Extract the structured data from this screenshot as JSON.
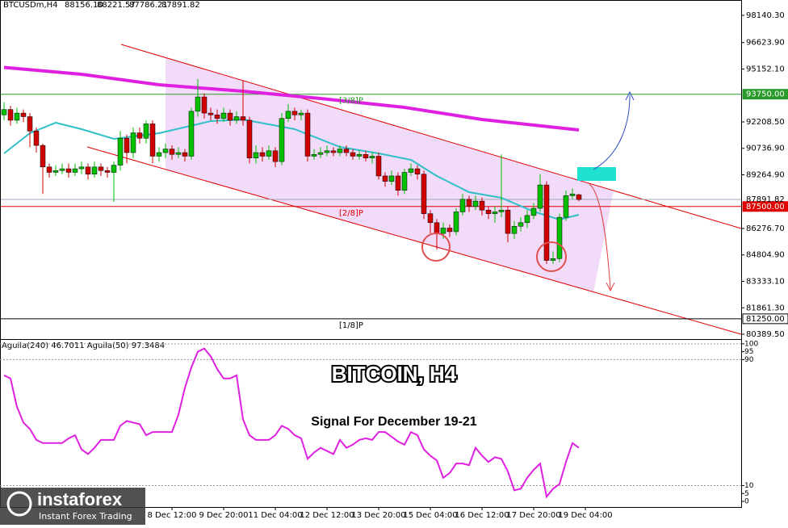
{
  "chart_data": {
    "type": "candlestick",
    "header": {
      "symbol": "BTCUSDm,H4",
      "ohlc_labels": [
        "88156.10",
        "88221.57",
        "87786.21",
        "87891.82"
      ]
    },
    "title": "BITCOIN, H4",
    "subtitle": "Signal For December 19-21",
    "watermark": {
      "brand": "instaforex",
      "tagline": "Instant Forex Trading"
    },
    "xlim": [
      -0.625,
      114.125
    ],
    "xticks": [
      {
        "value": 26,
        "label": "8 Dec 12:00"
      },
      {
        "value": 34,
        "label": "9 Dec 20:00"
      },
      {
        "value": 42,
        "label": "11 Dec 04:00"
      },
      {
        "value": 50,
        "label": "12 Dec 12:00"
      },
      {
        "value": 58,
        "label": "13 Dec 20:00"
      },
      {
        "value": 66,
        "label": "15 Dec 04:00"
      },
      {
        "value": 74,
        "label": "16 Dec 12:00"
      },
      {
        "value": 82,
        "label": "17 Dec 20:00"
      },
      {
        "value": 90,
        "label": "19 Dec 04:00"
      }
    ],
    "ylim": [
      80120,
      98994
    ],
    "yticks": [
      {
        "value": 98140.3,
        "label": "98140.30"
      },
      {
        "value": 96623.9,
        "label": "96623.90"
      },
      {
        "value": 95152.1,
        "label": "95152.10"
      },
      {
        "value": 92208.5,
        "label": "92208.50"
      },
      {
        "value": 90736.9,
        "label": "90736.90"
      },
      {
        "value": 89264.9,
        "label": "89264.90"
      },
      {
        "value": 86276.7,
        "label": "86276.70"
      },
      {
        "value": 84804.9,
        "label": "84804.90"
      },
      {
        "value": 83333.1,
        "label": "83333.10"
      },
      {
        "value": 81861.3,
        "label": "81861.30"
      },
      {
        "value": 80389.5,
        "label": "80389.50"
      }
    ],
    "up_color": "#00c000",
    "down_color": "#d00000",
    "open": [
      92600,
      92900,
      92300,
      92700,
      92500,
      91700,
      90900,
      89700,
      89400,
      89500,
      89600,
      89400,
      89600,
      89700,
      89300,
      89700,
      89500,
      89400,
      89800,
      91300,
      90500,
      91600,
      91300,
      92100,
      90300,
      90500,
      90700,
      90400,
      90500,
      90300,
      92800,
      93600,
      92700,
      92600,
      92400,
      92700,
      92300,
      92500,
      92300,
      90200,
      90500,
      90300,
      90600,
      90000,
      92400,
      92800,
      92600,
      92700,
      90300,
      90400,
      90500,
      90600,
      90500,
      90700,
      90500,
      90300,
      90400,
      90200,
      90300,
      89200,
      88900,
      89200,
      88400,
      89400,
      89600,
      89300,
      87100,
      86600,
      86000,
      86300,
      86100,
      87200,
      87900,
      87500,
      87800,
      87300,
      87100,
      87200,
      87300,
      86000,
      86400,
      86600,
      87000,
      87400,
      88700,
      84500,
      84600,
      86900,
      88100,
      88156.1
    ],
    "high": [
      93300,
      93100,
      93000,
      92900,
      92700,
      91900,
      91000,
      89900,
      89800,
      89900,
      89900,
      89900,
      90000,
      89900,
      90000,
      89900,
      89700,
      90000,
      91700,
      91500,
      91900,
      91900,
      92300,
      92300,
      90800,
      91000,
      90900,
      90800,
      90700,
      93000,
      94600,
      93800,
      93000,
      92900,
      93000,
      92900,
      92800,
      94500,
      92500,
      90900,
      90800,
      90900,
      90800,
      92700,
      93200,
      93000,
      92900,
      92900,
      90700,
      90800,
      90900,
      90800,
      90900,
      90900,
      90700,
      90600,
      90600,
      90500,
      90500,
      89400,
      89500,
      89400,
      89600,
      89900,
      89800,
      89500,
      87300,
      86800,
      86600,
      86500,
      87400,
      88200,
      88100,
      88100,
      88000,
      87500,
      87500,
      90400,
      87500,
      86700,
      86900,
      87300,
      87700,
      89300,
      88900,
      85000,
      87100,
      88400,
      88500,
      88221.57
    ],
    "low": [
      92300,
      92000,
      92100,
      92200,
      90800,
      90500,
      88200,
      89100,
      89200,
      89300,
      89100,
      89200,
      89300,
      89000,
      89100,
      89200,
      89100,
      87760,
      89500,
      89900,
      90200,
      91000,
      91000,
      89900,
      90000,
      90200,
      90100,
      90200,
      90000,
      90100,
      92500,
      92400,
      92300,
      92100,
      92200,
      92000,
      92100,
      92000,
      89900,
      89900,
      90000,
      90100,
      89700,
      89800,
      92200,
      92300,
      92300,
      90000,
      90100,
      90200,
      90300,
      90300,
      90300,
      90300,
      90100,
      90100,
      90000,
      89900,
      89000,
      88600,
      88700,
      88100,
      88200,
      89200,
      89000,
      86800,
      86000,
      85100,
      85700,
      85800,
      85900,
      87000,
      87200,
      87300,
      87000,
      86800,
      86600,
      86900,
      85500,
      85700,
      86100,
      86300,
      86800,
      87200,
      84300,
      84300,
      84400,
      86700,
      87900,
      87786.21
    ],
    "close": [
      92900,
      92300,
      92700,
      92500,
      91700,
      90900,
      89700,
      89400,
      89500,
      89600,
      89400,
      89600,
      89700,
      89300,
      89700,
      89500,
      89400,
      89800,
      91300,
      90500,
      91600,
      91300,
      92100,
      90300,
      90500,
      90700,
      90400,
      90500,
      90300,
      92800,
      93600,
      92700,
      92600,
      92400,
      92700,
      92300,
      92500,
      92300,
      90200,
      90500,
      90300,
      90600,
      90000,
      92400,
      92800,
      92600,
      92700,
      90300,
      90400,
      90500,
      90600,
      90500,
      90700,
      90500,
      90300,
      90400,
      90200,
      90300,
      89200,
      88900,
      89200,
      88400,
      89400,
      89600,
      89300,
      87100,
      86600,
      86000,
      86300,
      86100,
      87200,
      87900,
      87500,
      87800,
      87300,
      87100,
      87200,
      87300,
      86000,
      86400,
      86600,
      87000,
      87400,
      88700,
      84500,
      84600,
      86900,
      88100,
      88200,
      87891.82
    ],
    "moving_averages": [
      {
        "color": "#e020e0",
        "x": [
          0,
          12,
          24,
          37,
          49,
          62,
          74,
          89
        ],
        "values": [
          95240,
          94860,
          94275,
          93916,
          93511,
          93017,
          92343,
          91759
        ]
      },
      {
        "color": "#30c0c8",
        "x": [
          0,
          4,
          8,
          12,
          17,
          24,
          32,
          37,
          45,
          52,
          58,
          63,
          67,
          72,
          77,
          82,
          86,
          89
        ],
        "values": [
          90455,
          91579,
          92164,
          91804,
          91265,
          91579,
          92253,
          92343,
          91804,
          90815,
          90455,
          90096,
          89197,
          88298,
          87984,
          87220,
          86770,
          87040
        ]
      }
    ],
    "levels": [
      {
        "name": "[3/8]P",
        "value": 93750,
        "label": "93750.00",
        "color": "#2a9a2a"
      },
      {
        "name": "[2/8]P",
        "value": 87500,
        "label": "87500.00",
        "color": "#e00000"
      },
      {
        "name": "[1/8]P",
        "value": 81250,
        "label": "81250.00",
        "color": "#000000"
      }
    ],
    "current_price": {
      "value": 87891.82,
      "label": "87891.82"
    },
    "indicator": {
      "header": "Aguila(240) 46.7011 Aguila(50) 97.3484",
      "color": "#e020e0",
      "ylim": [
        -4.6,
        103
      ],
      "yticks": [
        100,
        95,
        90,
        10,
        5,
        0
      ],
      "levels": [
        100,
        90,
        10
      ],
      "values": [
        80,
        78,
        60,
        50,
        46,
        39,
        37,
        37,
        37,
        37,
        40,
        42,
        33,
        30,
        34,
        39,
        39,
        39,
        48,
        51,
        50,
        49,
        42,
        44,
        44,
        44,
        44,
        55,
        72,
        85,
        95,
        97,
        92,
        84,
        78,
        78,
        80,
        52,
        42,
        39,
        39,
        39,
        42,
        48,
        46,
        42,
        40,
        27,
        31,
        34,
        32,
        30,
        39,
        34,
        36,
        39,
        40,
        39,
        44,
        44,
        41,
        38,
        36,
        44,
        42,
        33,
        29,
        26,
        15,
        18,
        24,
        24,
        23,
        34,
        29,
        25,
        28,
        27,
        19,
        7,
        8,
        15,
        20,
        24,
        3,
        8,
        11,
        25,
        37,
        34
      ]
    }
  }
}
